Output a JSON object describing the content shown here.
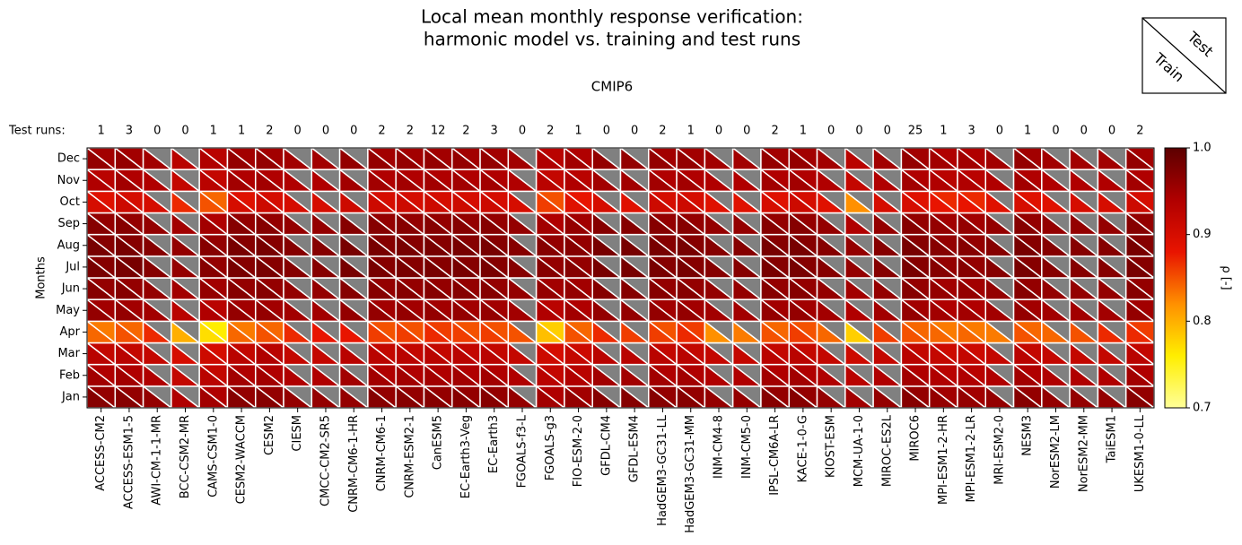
{
  "chart_data": {
    "type": "triangle_heatmap",
    "title": [
      "Local mean monthly response verification:",
      "harmonic model vs. training and test runs"
    ],
    "subtitle": "CMIP6",
    "test_runs_label": "Test runs:",
    "y_label": "Months",
    "colorbar_label": "ρ [-]",
    "legend": {
      "upper": "Test",
      "lower": "Train"
    },
    "categories": [
      "ACCESS-CM2",
      "ACCESS-ESM1-5",
      "AWI-CM-1-1-MR",
      "BCC-CSM2-MR",
      "CAMS-CSM1-0",
      "CESM2-WACCM",
      "CESM2",
      "CIESM",
      "CMCC-CM2-SR5",
      "CNRM-CM6-1-HR",
      "CNRM-CM6-1",
      "CNRM-ESM2-1",
      "CanESM5",
      "EC-Earth3-Veg",
      "EC-Earth3",
      "FGOALS-f3-L",
      "FGOALS-g3",
      "FIO-ESM-2-0",
      "GFDL-CM4",
      "GFDL-ESM4",
      "HadGEM3-GC31-LL",
      "HadGEM3-GC31-MM",
      "INM-CM4-8",
      "INM-CM5-0",
      "IPSL-CM6A-LR",
      "KACE-1-0-G",
      "KIOST-ESM",
      "MCM-UA-1-0",
      "MIROC-ES2L",
      "MIROC6",
      "MPI-ESM1-2-HR",
      "MPI-ESM1-2-LR",
      "MRI-ESM2-0",
      "NESM3",
      "NorESM2-LM",
      "NorESM2-MM",
      "TaiESM1",
      "UKESM1-0-LL"
    ],
    "months": [
      "Jan",
      "Feb",
      "Mar",
      "Apr",
      "May",
      "Jun",
      "Jul",
      "Aug",
      "Sep",
      "Oct",
      "Nov",
      "Dec"
    ],
    "test_runs": [
      1,
      3,
      0,
      0,
      1,
      1,
      2,
      0,
      0,
      0,
      2,
      2,
      12,
      2,
      3,
      0,
      2,
      1,
      0,
      0,
      2,
      1,
      0,
      0,
      2,
      1,
      0,
      0,
      0,
      25,
      1,
      3,
      0,
      1,
      0,
      0,
      0,
      2
    ],
    "train": [
      [
        0.97,
        0.95,
        0.93,
        0.84,
        0.96,
        0.97,
        0.98,
        0.98,
        0.97,
        0.9,
        0.94,
        0.96
      ],
      [
        0.97,
        0.95,
        0.93,
        0.85,
        0.96,
        0.97,
        0.98,
        0.98,
        0.97,
        0.91,
        0.95,
        0.96
      ],
      [
        0.96,
        0.94,
        0.92,
        0.87,
        0.95,
        0.96,
        0.97,
        0.97,
        0.96,
        0.9,
        0.94,
        0.95
      ],
      [
        0.94,
        0.92,
        0.9,
        0.8,
        0.93,
        0.95,
        0.96,
        0.96,
        0.95,
        0.87,
        0.92,
        0.93
      ],
      [
        0.95,
        0.93,
        0.91,
        0.77,
        0.94,
        0.96,
        0.97,
        0.97,
        0.95,
        0.85,
        0.93,
        0.94
      ],
      [
        0.97,
        0.95,
        0.93,
        0.84,
        0.96,
        0.97,
        0.98,
        0.98,
        0.97,
        0.9,
        0.95,
        0.96
      ],
      [
        0.97,
        0.95,
        0.94,
        0.85,
        0.96,
        0.97,
        0.98,
        0.98,
        0.97,
        0.91,
        0.95,
        0.96
      ],
      [
        0.96,
        0.94,
        0.92,
        0.87,
        0.95,
        0.96,
        0.97,
        0.97,
        0.96,
        0.9,
        0.94,
        0.95
      ],
      [
        0.96,
        0.94,
        0.92,
        0.88,
        0.95,
        0.96,
        0.97,
        0.97,
        0.96,
        0.9,
        0.94,
        0.95
      ],
      [
        0.96,
        0.95,
        0.93,
        0.88,
        0.96,
        0.97,
        0.98,
        0.98,
        0.97,
        0.91,
        0.95,
        0.96
      ],
      [
        0.97,
        0.95,
        0.93,
        0.86,
        0.96,
        0.97,
        0.98,
        0.98,
        0.97,
        0.91,
        0.95,
        0.96
      ],
      [
        0.97,
        0.95,
        0.93,
        0.86,
        0.96,
        0.97,
        0.98,
        0.98,
        0.97,
        0.91,
        0.95,
        0.96
      ],
      [
        0.97,
        0.95,
        0.93,
        0.87,
        0.96,
        0.97,
        0.98,
        0.98,
        0.97,
        0.91,
        0.95,
        0.96
      ],
      [
        0.97,
        0.95,
        0.93,
        0.86,
        0.96,
        0.97,
        0.98,
        0.98,
        0.97,
        0.91,
        0.95,
        0.96
      ],
      [
        0.97,
        0.95,
        0.93,
        0.86,
        0.96,
        0.97,
        0.98,
        0.98,
        0.97,
        0.91,
        0.95,
        0.96
      ],
      [
        0.96,
        0.94,
        0.92,
        0.85,
        0.95,
        0.96,
        0.97,
        0.97,
        0.96,
        0.9,
        0.94,
        0.95
      ],
      [
        0.95,
        0.93,
        0.91,
        0.79,
        0.94,
        0.96,
        0.97,
        0.97,
        0.95,
        0.86,
        0.93,
        0.94
      ],
      [
        0.96,
        0.94,
        0.92,
        0.85,
        0.95,
        0.96,
        0.97,
        0.97,
        0.96,
        0.89,
        0.94,
        0.95
      ],
      [
        0.97,
        0.95,
        0.93,
        0.87,
        0.96,
        0.97,
        0.98,
        0.98,
        0.97,
        0.9,
        0.95,
        0.96
      ],
      [
        0.97,
        0.95,
        0.93,
        0.86,
        0.96,
        0.97,
        0.98,
        0.98,
        0.97,
        0.89,
        0.95,
        0.96
      ],
      [
        0.97,
        0.95,
        0.93,
        0.86,
        0.96,
        0.97,
        0.98,
        0.98,
        0.97,
        0.91,
        0.95,
        0.96
      ],
      [
        0.97,
        0.95,
        0.93,
        0.87,
        0.96,
        0.97,
        0.98,
        0.98,
        0.97,
        0.91,
        0.95,
        0.96
      ],
      [
        0.96,
        0.94,
        0.92,
        0.82,
        0.95,
        0.96,
        0.97,
        0.97,
        0.96,
        0.89,
        0.94,
        0.95
      ],
      [
        0.96,
        0.94,
        0.92,
        0.83,
        0.95,
        0.96,
        0.97,
        0.97,
        0.96,
        0.89,
        0.94,
        0.95
      ],
      [
        0.97,
        0.95,
        0.93,
        0.85,
        0.96,
        0.97,
        0.98,
        0.98,
        0.97,
        0.9,
        0.95,
        0.96
      ],
      [
        0.97,
        0.95,
        0.93,
        0.86,
        0.96,
        0.97,
        0.98,
        0.98,
        0.97,
        0.91,
        0.95,
        0.96
      ],
      [
        0.96,
        0.94,
        0.92,
        0.84,
        0.95,
        0.96,
        0.97,
        0.97,
        0.96,
        0.89,
        0.94,
        0.95
      ],
      [
        0.95,
        0.93,
        0.91,
        0.78,
        0.94,
        0.95,
        0.96,
        0.96,
        0.94,
        0.82,
        0.92,
        0.93
      ],
      [
        0.96,
        0.94,
        0.92,
        0.86,
        0.95,
        0.96,
        0.97,
        0.97,
        0.96,
        0.9,
        0.94,
        0.95
      ],
      [
        0.97,
        0.95,
        0.93,
        0.85,
        0.96,
        0.97,
        0.98,
        0.98,
        0.97,
        0.9,
        0.95,
        0.96
      ],
      [
        0.96,
        0.94,
        0.92,
        0.84,
        0.95,
        0.96,
        0.97,
        0.97,
        0.96,
        0.88,
        0.94,
        0.95
      ],
      [
        0.96,
        0.94,
        0.92,
        0.84,
        0.95,
        0.96,
        0.97,
        0.97,
        0.96,
        0.88,
        0.94,
        0.95
      ],
      [
        0.96,
        0.94,
        0.92,
        0.83,
        0.95,
        0.96,
        0.97,
        0.97,
        0.96,
        0.89,
        0.94,
        0.95
      ],
      [
        0.97,
        0.95,
        0.93,
        0.85,
        0.96,
        0.97,
        0.98,
        0.98,
        0.97,
        0.9,
        0.95,
        0.96
      ],
      [
        0.96,
        0.94,
        0.92,
        0.84,
        0.95,
        0.96,
        0.97,
        0.97,
        0.96,
        0.89,
        0.94,
        0.95
      ],
      [
        0.96,
        0.94,
        0.92,
        0.85,
        0.95,
        0.96,
        0.97,
        0.97,
        0.96,
        0.9,
        0.94,
        0.95
      ],
      [
        0.96,
        0.94,
        0.92,
        0.87,
        0.95,
        0.96,
        0.97,
        0.97,
        0.96,
        0.9,
        0.94,
        0.95
      ],
      [
        0.97,
        0.95,
        0.93,
        0.87,
        0.96,
        0.97,
        0.98,
        0.98,
        0.97,
        0.91,
        0.95,
        0.96
      ]
    ],
    "test": [
      [
        0.96,
        0.94,
        0.92,
        0.83,
        0.95,
        0.96,
        0.97,
        0.97,
        0.96,
        0.89,
        0.93,
        0.95
      ],
      [
        0.96,
        0.94,
        0.92,
        0.84,
        0.95,
        0.96,
        0.98,
        0.97,
        0.96,
        0.9,
        0.94,
        0.95
      ],
      [
        null,
        null,
        null,
        null,
        null,
        null,
        null,
        null,
        null,
        null,
        null,
        null
      ],
      [
        null,
        null,
        null,
        null,
        null,
        null,
        null,
        null,
        null,
        null,
        null,
        null
      ],
      [
        0.94,
        0.92,
        0.9,
        0.76,
        0.93,
        0.95,
        0.96,
        0.96,
        0.94,
        0.84,
        0.92,
        0.93
      ],
      [
        0.96,
        0.94,
        0.92,
        0.83,
        0.95,
        0.96,
        0.97,
        0.97,
        0.96,
        0.89,
        0.94,
        0.95
      ],
      [
        0.96,
        0.94,
        0.93,
        0.84,
        0.95,
        0.96,
        0.97,
        0.97,
        0.96,
        0.9,
        0.94,
        0.95
      ],
      [
        null,
        null,
        null,
        null,
        null,
        null,
        null,
        null,
        null,
        null,
        null,
        null
      ],
      [
        null,
        null,
        null,
        null,
        null,
        null,
        null,
        null,
        null,
        null,
        null,
        null
      ],
      [
        null,
        null,
        null,
        null,
        null,
        null,
        null,
        null,
        null,
        null,
        null,
        null
      ],
      [
        0.96,
        0.94,
        0.92,
        0.85,
        0.95,
        0.96,
        0.97,
        0.97,
        0.96,
        0.9,
        0.94,
        0.95
      ],
      [
        0.96,
        0.94,
        0.92,
        0.85,
        0.95,
        0.96,
        0.97,
        0.97,
        0.96,
        0.9,
        0.94,
        0.95
      ],
      [
        0.96,
        0.94,
        0.92,
        0.86,
        0.95,
        0.96,
        0.97,
        0.97,
        0.96,
        0.9,
        0.94,
        0.95
      ],
      [
        0.96,
        0.94,
        0.92,
        0.85,
        0.95,
        0.96,
        0.97,
        0.97,
        0.96,
        0.9,
        0.94,
        0.95
      ],
      [
        0.96,
        0.94,
        0.92,
        0.85,
        0.95,
        0.96,
        0.97,
        0.97,
        0.96,
        0.9,
        0.94,
        0.95
      ],
      [
        null,
        null,
        null,
        null,
        null,
        null,
        null,
        null,
        null,
        null,
        null,
        null
      ],
      [
        0.94,
        0.92,
        0.9,
        0.78,
        0.93,
        0.95,
        0.96,
        0.96,
        0.94,
        0.85,
        0.92,
        0.93
      ],
      [
        0.95,
        0.93,
        0.91,
        0.84,
        0.94,
        0.95,
        0.96,
        0.96,
        0.95,
        0.88,
        0.93,
        0.94
      ],
      [
        null,
        null,
        null,
        null,
        null,
        null,
        null,
        null,
        null,
        null,
        null,
        null
      ],
      [
        null,
        null,
        null,
        null,
        null,
        null,
        null,
        null,
        null,
        null,
        null,
        null
      ],
      [
        0.96,
        0.94,
        0.92,
        0.85,
        0.95,
        0.96,
        0.97,
        0.97,
        0.96,
        0.9,
        0.94,
        0.95
      ],
      [
        0.96,
        0.94,
        0.92,
        0.86,
        0.95,
        0.96,
        0.97,
        0.97,
        0.96,
        0.9,
        0.94,
        0.95
      ],
      [
        null,
        null,
        null,
        null,
        null,
        null,
        null,
        null,
        null,
        null,
        null,
        null
      ],
      [
        null,
        null,
        null,
        null,
        null,
        null,
        null,
        null,
        null,
        null,
        null,
        null
      ],
      [
        0.96,
        0.94,
        0.92,
        0.84,
        0.95,
        0.96,
        0.97,
        0.97,
        0.96,
        0.89,
        0.94,
        0.95
      ],
      [
        0.96,
        0.94,
        0.92,
        0.85,
        0.95,
        0.96,
        0.97,
        0.97,
        0.96,
        0.9,
        0.94,
        0.95
      ],
      [
        null,
        null,
        null,
        null,
        null,
        null,
        null,
        null,
        null,
        null,
        null,
        null
      ],
      [
        null,
        null,
        null,
        null,
        null,
        null,
        null,
        null,
        null,
        null,
        null,
        null
      ],
      [
        null,
        null,
        null,
        null,
        null,
        null,
        null,
        null,
        null,
        null,
        null,
        null
      ],
      [
        0.96,
        0.94,
        0.92,
        0.84,
        0.95,
        0.96,
        0.97,
        0.97,
        0.96,
        0.89,
        0.94,
        0.95
      ],
      [
        0.95,
        0.93,
        0.91,
        0.83,
        0.94,
        0.95,
        0.96,
        0.96,
        0.95,
        0.87,
        0.93,
        0.94
      ],
      [
        0.95,
        0.93,
        0.91,
        0.83,
        0.94,
        0.95,
        0.96,
        0.96,
        0.95,
        0.87,
        0.93,
        0.94
      ],
      [
        null,
        null,
        null,
        null,
        null,
        null,
        null,
        null,
        null,
        null,
        null,
        null
      ],
      [
        0.96,
        0.94,
        0.92,
        0.84,
        0.95,
        0.96,
        0.97,
        0.97,
        0.96,
        0.89,
        0.94,
        0.95
      ],
      [
        null,
        null,
        null,
        null,
        null,
        null,
        null,
        null,
        null,
        null,
        null,
        null
      ],
      [
        null,
        null,
        null,
        null,
        null,
        null,
        null,
        null,
        null,
        null,
        null,
        null
      ],
      [
        null,
        null,
        null,
        null,
        null,
        null,
        null,
        null,
        null,
        null,
        null,
        null
      ],
      [
        0.96,
        0.94,
        0.92,
        0.86,
        0.95,
        0.96,
        0.97,
        0.97,
        0.96,
        0.9,
        0.94,
        0.95
      ]
    ],
    "missing_color": "#808080",
    "colormap": [
      "#ffff99",
      "#ffee00",
      "#ff9000",
      "#e81400",
      "#b00000",
      "#5c0000"
    ],
    "clim": [
      0.7,
      1
    ],
    "cticks": [
      0.7,
      0.8,
      0.9,
      {
        "value": 1,
        "label": "1.0"
      }
    ]
  }
}
